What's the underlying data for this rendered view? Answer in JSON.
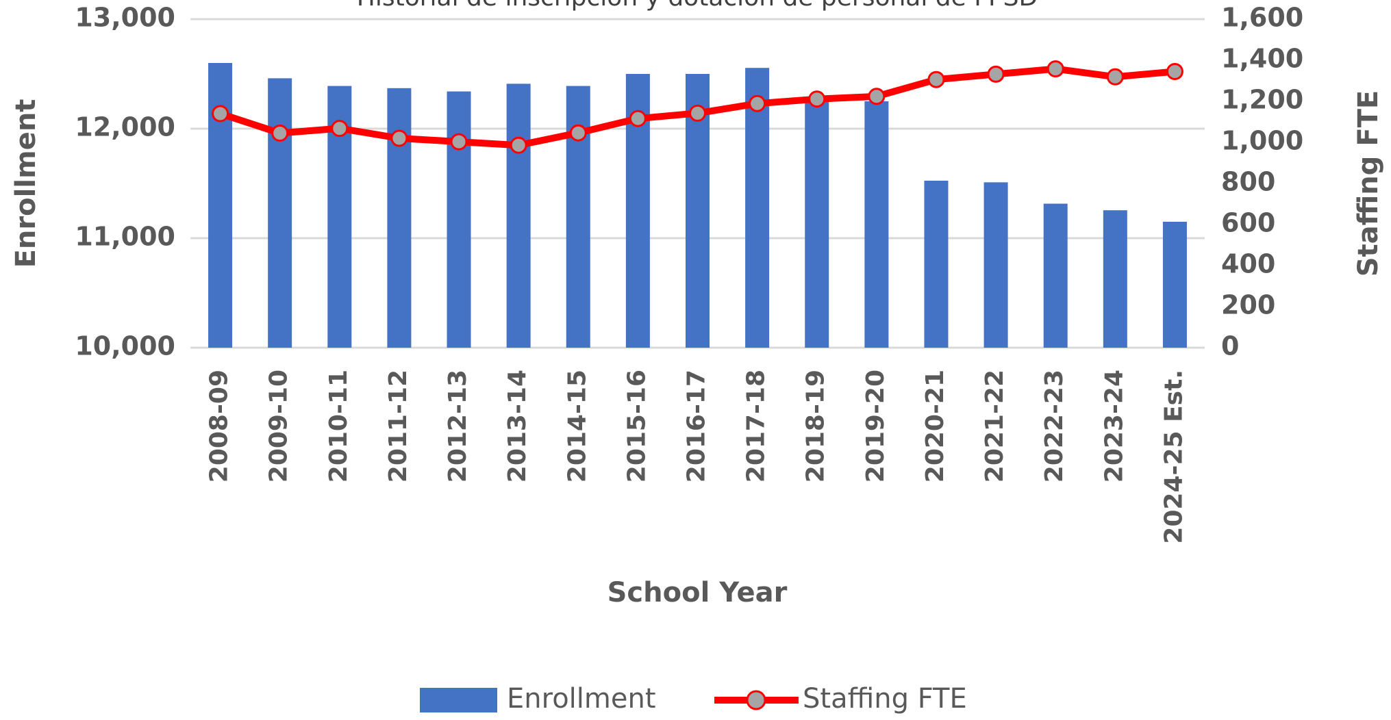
{
  "chart_data": {
    "type": "bar-line",
    "title": "Historial de inscripción y dotación de personal de FPSD",
    "x_label": "School Year",
    "y_label": "Enrollment",
    "y2_label": "Staffing FTE",
    "categories": [
      "2008-09",
      "2009-10",
      "2010-11",
      "2011-12",
      "2012-13",
      "2013-14",
      "2014-15",
      "2015-16",
      "2016-17",
      "2017-18",
      "2018-19",
      "2019-20",
      "2020-21",
      "2021-22",
      "2022-23",
      "2023-24",
      "2024-25 Est."
    ],
    "series": [
      {
        "name": "Enrollment",
        "type": "bar",
        "color": "#4472c4",
        "values": [
          12600,
          12460,
          12390,
          12370,
          12340,
          12410,
          12390,
          12500,
          12500,
          12555,
          12250,
          12250,
          11525,
          11510,
          11315,
          11255,
          11150
        ]
      },
      {
        "name": "Staffing FTE",
        "type": "line",
        "axis": "y2",
        "color": "#ff0000",
        "marker_color": "#a5a5a5",
        "values": [
          1140,
          1045,
          1068,
          1020,
          1003,
          986,
          1046,
          1116,
          1142,
          1189,
          1211,
          1224,
          1306,
          1332,
          1358,
          1319,
          1345
        ]
      }
    ],
    "ylim": [
      10000,
      13000
    ],
    "yticks": [
      {
        "value": 10000,
        "label": "10,000"
      },
      {
        "value": 11000,
        "label": "11,000"
      },
      {
        "value": 12000,
        "label": "12,000"
      },
      {
        "value": 13000,
        "label": "13,000"
      }
    ],
    "y2lim": [
      0,
      1600
    ],
    "y2ticks": [
      0,
      200,
      400,
      600,
      800,
      {
        "value": 1000,
        "label": "1,000"
      },
      {
        "value": 1200,
        "label": "1,200"
      },
      {
        "value": 1400,
        "label": "1,400"
      },
      {
        "value": 1600,
        "label": "1,600"
      }
    ],
    "grid": true,
    "legend": "bottom"
  }
}
